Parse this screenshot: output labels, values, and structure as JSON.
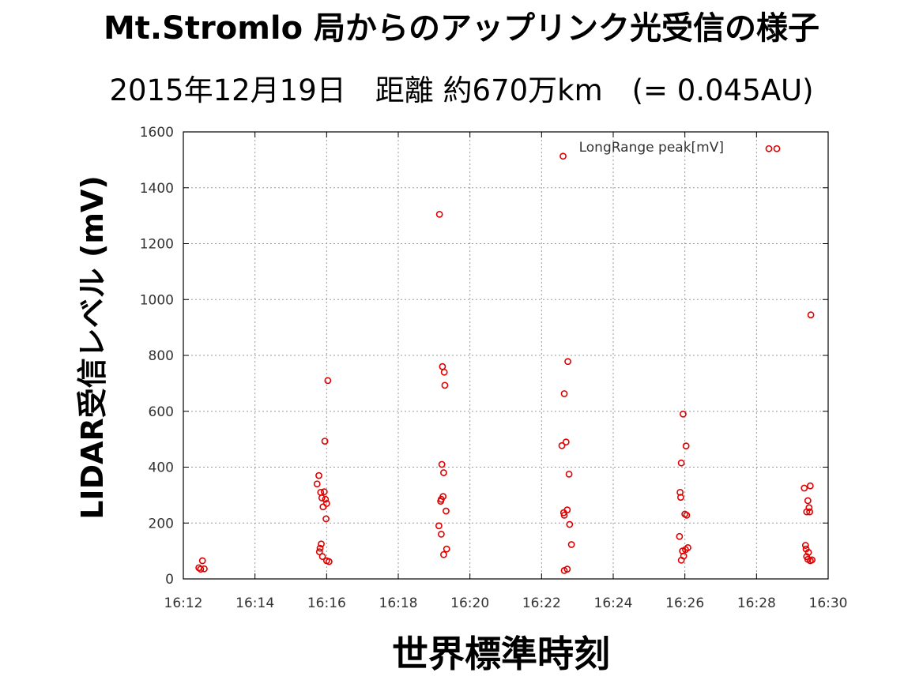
{
  "title": "Mt.Stromlo 局からのアップリンク光受信の様子",
  "subtitle": "2015年12月19日　距離 約670万km　(= 0.045AU)",
  "colors": {
    "points": "#e00000",
    "grid": "#9a9a9a",
    "axis": "#000000"
  },
  "chart_data": {
    "type": "scatter",
    "xlabel": "世界標準時刻",
    "ylabel": "LIDAR受信レベル (mV)",
    "xlim": [
      "16:12",
      "16:30"
    ],
    "ylim": [
      0,
      1600
    ],
    "x_ticks": [
      "16:12",
      "16:14",
      "16:16",
      "16:18",
      "16:20",
      "16:22",
      "16:24",
      "16:26",
      "16:28",
      "16:30"
    ],
    "y_ticks": [
      0,
      200,
      400,
      600,
      800,
      1000,
      1200,
      1400,
      1600
    ],
    "grid": true,
    "legend_position": "top-right",
    "series": [
      {
        "name": "LongRange peak[mV]",
        "points": [
          [
            "16:12:26",
            40
          ],
          [
            "16:12:32",
            65
          ],
          [
            "16:12:29",
            35
          ],
          [
            "16:12:35",
            36
          ],
          [
            "16:15:47",
            370
          ],
          [
            "16:15:44",
            340
          ],
          [
            "16:15:50",
            310
          ],
          [
            "16:15:56",
            312
          ],
          [
            "16:15:52",
            290
          ],
          [
            "16:15:58",
            285
          ],
          [
            "16:16:00",
            270
          ],
          [
            "16:15:54",
            258
          ],
          [
            "16:15:57",
            493
          ],
          [
            "16:16:02",
            710
          ],
          [
            "16:15:59",
            215
          ],
          [
            "16:15:51",
            125
          ],
          [
            "16:15:49",
            110
          ],
          [
            "16:15:48",
            97
          ],
          [
            "16:15:53",
            80
          ],
          [
            "16:16:00",
            65
          ],
          [
            "16:16:04",
            62
          ],
          [
            "16:19:09",
            1305
          ],
          [
            "16:19:14",
            760
          ],
          [
            "16:19:17",
            740
          ],
          [
            "16:19:18",
            693
          ],
          [
            "16:19:13",
            410
          ],
          [
            "16:19:16",
            380
          ],
          [
            "16:19:12",
            285
          ],
          [
            "16:19:15",
            295
          ],
          [
            "16:19:11",
            278
          ],
          [
            "16:19:20",
            243
          ],
          [
            "16:19:08",
            190
          ],
          [
            "16:19:12",
            160
          ],
          [
            "16:19:21",
            107
          ],
          [
            "16:19:16",
            87
          ],
          [
            "16:22:36",
            1513
          ],
          [
            "16:22:44",
            778
          ],
          [
            "16:22:38",
            663
          ],
          [
            "16:22:34",
            477
          ],
          [
            "16:22:41",
            490
          ],
          [
            "16:22:46",
            375
          ],
          [
            "16:22:43",
            247
          ],
          [
            "16:22:37",
            237
          ],
          [
            "16:22:38",
            228
          ],
          [
            "16:22:47",
            195
          ],
          [
            "16:22:50",
            123
          ],
          [
            "16:22:38",
            30
          ],
          [
            "16:22:43",
            35
          ],
          [
            "16:25:57",
            590
          ],
          [
            "16:26:02",
            476
          ],
          [
            "16:25:54",
            415
          ],
          [
            "16:25:52",
            310
          ],
          [
            "16:25:53",
            292
          ],
          [
            "16:26:00",
            232
          ],
          [
            "16:26:03",
            228
          ],
          [
            "16:25:51",
            152
          ],
          [
            "16:26:05",
            112
          ],
          [
            "16:26:01",
            105
          ],
          [
            "16:25:56",
            100
          ],
          [
            "16:25:58",
            82
          ],
          [
            "16:25:54",
            67
          ],
          [
            "16:28:34",
            1540
          ],
          [
            "16:29:31",
            945
          ],
          [
            "16:29:20",
            325
          ],
          [
            "16:29:30",
            333
          ],
          [
            "16:29:26",
            280
          ],
          [
            "16:29:28",
            255
          ],
          [
            "16:29:24",
            240
          ],
          [
            "16:29:29",
            240
          ],
          [
            "16:29:22",
            120
          ],
          [
            "16:29:23",
            107
          ],
          [
            "16:29:27",
            95
          ],
          [
            "16:29:24",
            80
          ],
          [
            "16:29:26",
            70
          ],
          [
            "16:29:30",
            65
          ],
          [
            "16:29:33",
            68
          ]
        ]
      }
    ]
  }
}
